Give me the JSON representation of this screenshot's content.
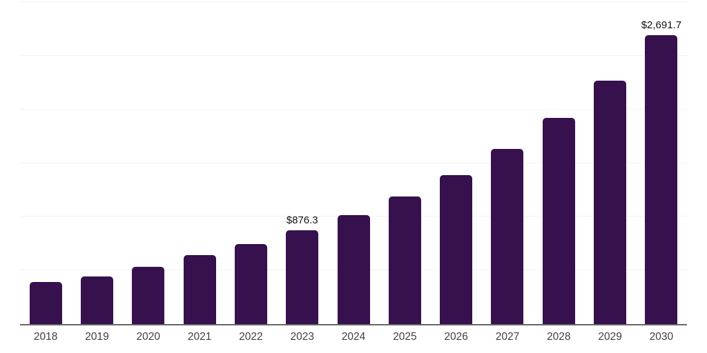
{
  "chart_data": {
    "type": "bar",
    "title": "",
    "xlabel": "",
    "ylabel": "",
    "categories": [
      "2018",
      "2019",
      "2020",
      "2021",
      "2022",
      "2023",
      "2024",
      "2025",
      "2026",
      "2027",
      "2028",
      "2029",
      "2030"
    ],
    "values": [
      390,
      441,
      535,
      643,
      746,
      876.3,
      1016,
      1190,
      1388,
      1630,
      1923,
      2268,
      2691.7
    ],
    "data_labels": {
      "2023": "$876.3",
      "2030": "$2,691.7"
    },
    "ylim": [
      0,
      3000
    ],
    "gridline_values": [
      500,
      1000,
      1500,
      2000,
      2500,
      3000
    ],
    "grid": true,
    "legend": "none",
    "colors": {
      "bar": "#36114d",
      "gridline": "#f2f2f2",
      "axis_line": "#666666",
      "tick_label": "#3f3f3f",
      "data_label": "#111111"
    }
  }
}
